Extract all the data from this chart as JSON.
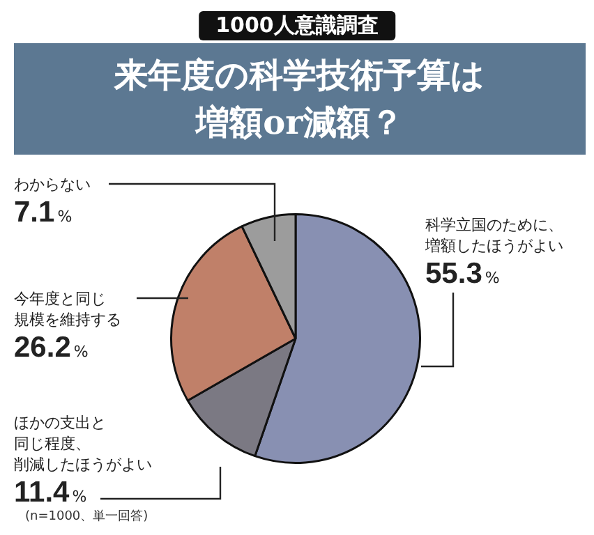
{
  "chart_data": {
    "type": "pie",
    "subtitle": "1000人意識調査",
    "title": "来年度の科学技術予算は増額or減額？",
    "categories": [
      "科学立国のために、増額したほうがよい",
      "ほかの支出と同じ程度、削減したほうがよい",
      "今年度と同じ規模を維持する",
      "わからない"
    ],
    "values": [
      55.3,
      11.4,
      26.2,
      7.1
    ],
    "value_labels": [
      "55.3%",
      "11.4%",
      "26.2%",
      "7.1%"
    ],
    "colors": [
      "#8890b2",
      "#7b7983",
      "#c08069",
      "#9c9c9c"
    ],
    "annotations": [
      "(n=1000、単一回答)"
    ],
    "legend": false
  }
}
